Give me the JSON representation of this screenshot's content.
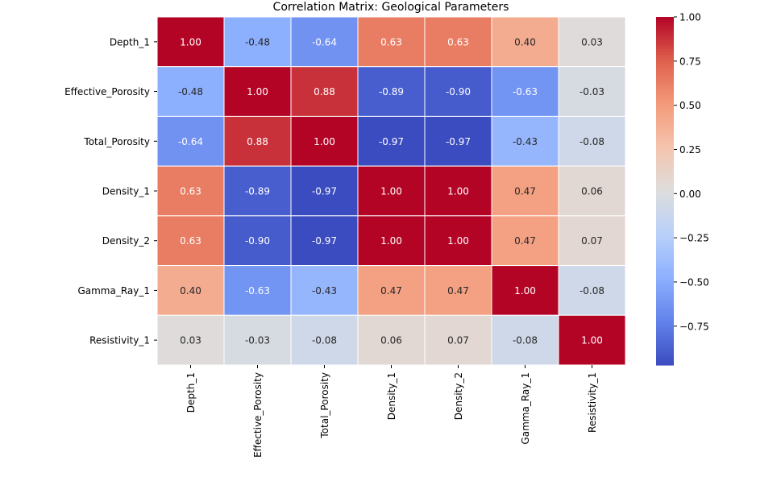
{
  "chart_data": {
    "type": "heatmap",
    "title": "Correlation Matrix: Geological Parameters",
    "rows": [
      "Depth_1",
      "Effective_Porosity",
      "Total_Porosity",
      "Density_1",
      "Density_2",
      "Gamma_Ray_1",
      "Resistivity_1"
    ],
    "columns": [
      "Depth_1",
      "Effective_Porosity",
      "Total_Porosity",
      "Density_1",
      "Density_2",
      "Gamma_Ray_1",
      "Resistivity_1"
    ],
    "values": [
      [
        1.0,
        -0.48,
        -0.64,
        0.63,
        0.63,
        0.4,
        0.03
      ],
      [
        -0.48,
        1.0,
        0.88,
        -0.89,
        -0.9,
        -0.63,
        -0.03
      ],
      [
        -0.64,
        0.88,
        1.0,
        -0.97,
        -0.97,
        -0.43,
        -0.08
      ],
      [
        0.63,
        -0.89,
        -0.97,
        1.0,
        1.0,
        0.47,
        0.06
      ],
      [
        0.63,
        -0.9,
        -0.97,
        1.0,
        1.0,
        0.47,
        0.07
      ],
      [
        0.4,
        -0.63,
        -0.43,
        0.47,
        0.47,
        1.0,
        -0.08
      ],
      [
        0.03,
        -0.03,
        -0.08,
        0.06,
        0.07,
        -0.08,
        1.0
      ]
    ],
    "value_format": "2 decimals",
    "colormap": "coolwarm",
    "colorbar": {
      "range": [
        -0.97,
        1.0
      ],
      "ticks": [
        1.0,
        0.75,
        0.5,
        0.25,
        0.0,
        -0.25,
        -0.5,
        -0.75
      ],
      "tick_labels": [
        "1.00",
        "0.75",
        "0.50",
        "0.25",
        "0.00",
        "−0.25",
        "−0.50",
        "−0.75"
      ],
      "position": "right"
    },
    "colors": {
      "low": "#3b4cc0",
      "mid": "#dddddd",
      "high": "#b40426",
      "text_on_dark": "#ffffff",
      "text_on_light": "#262626"
    },
    "gridlines": "white"
  }
}
